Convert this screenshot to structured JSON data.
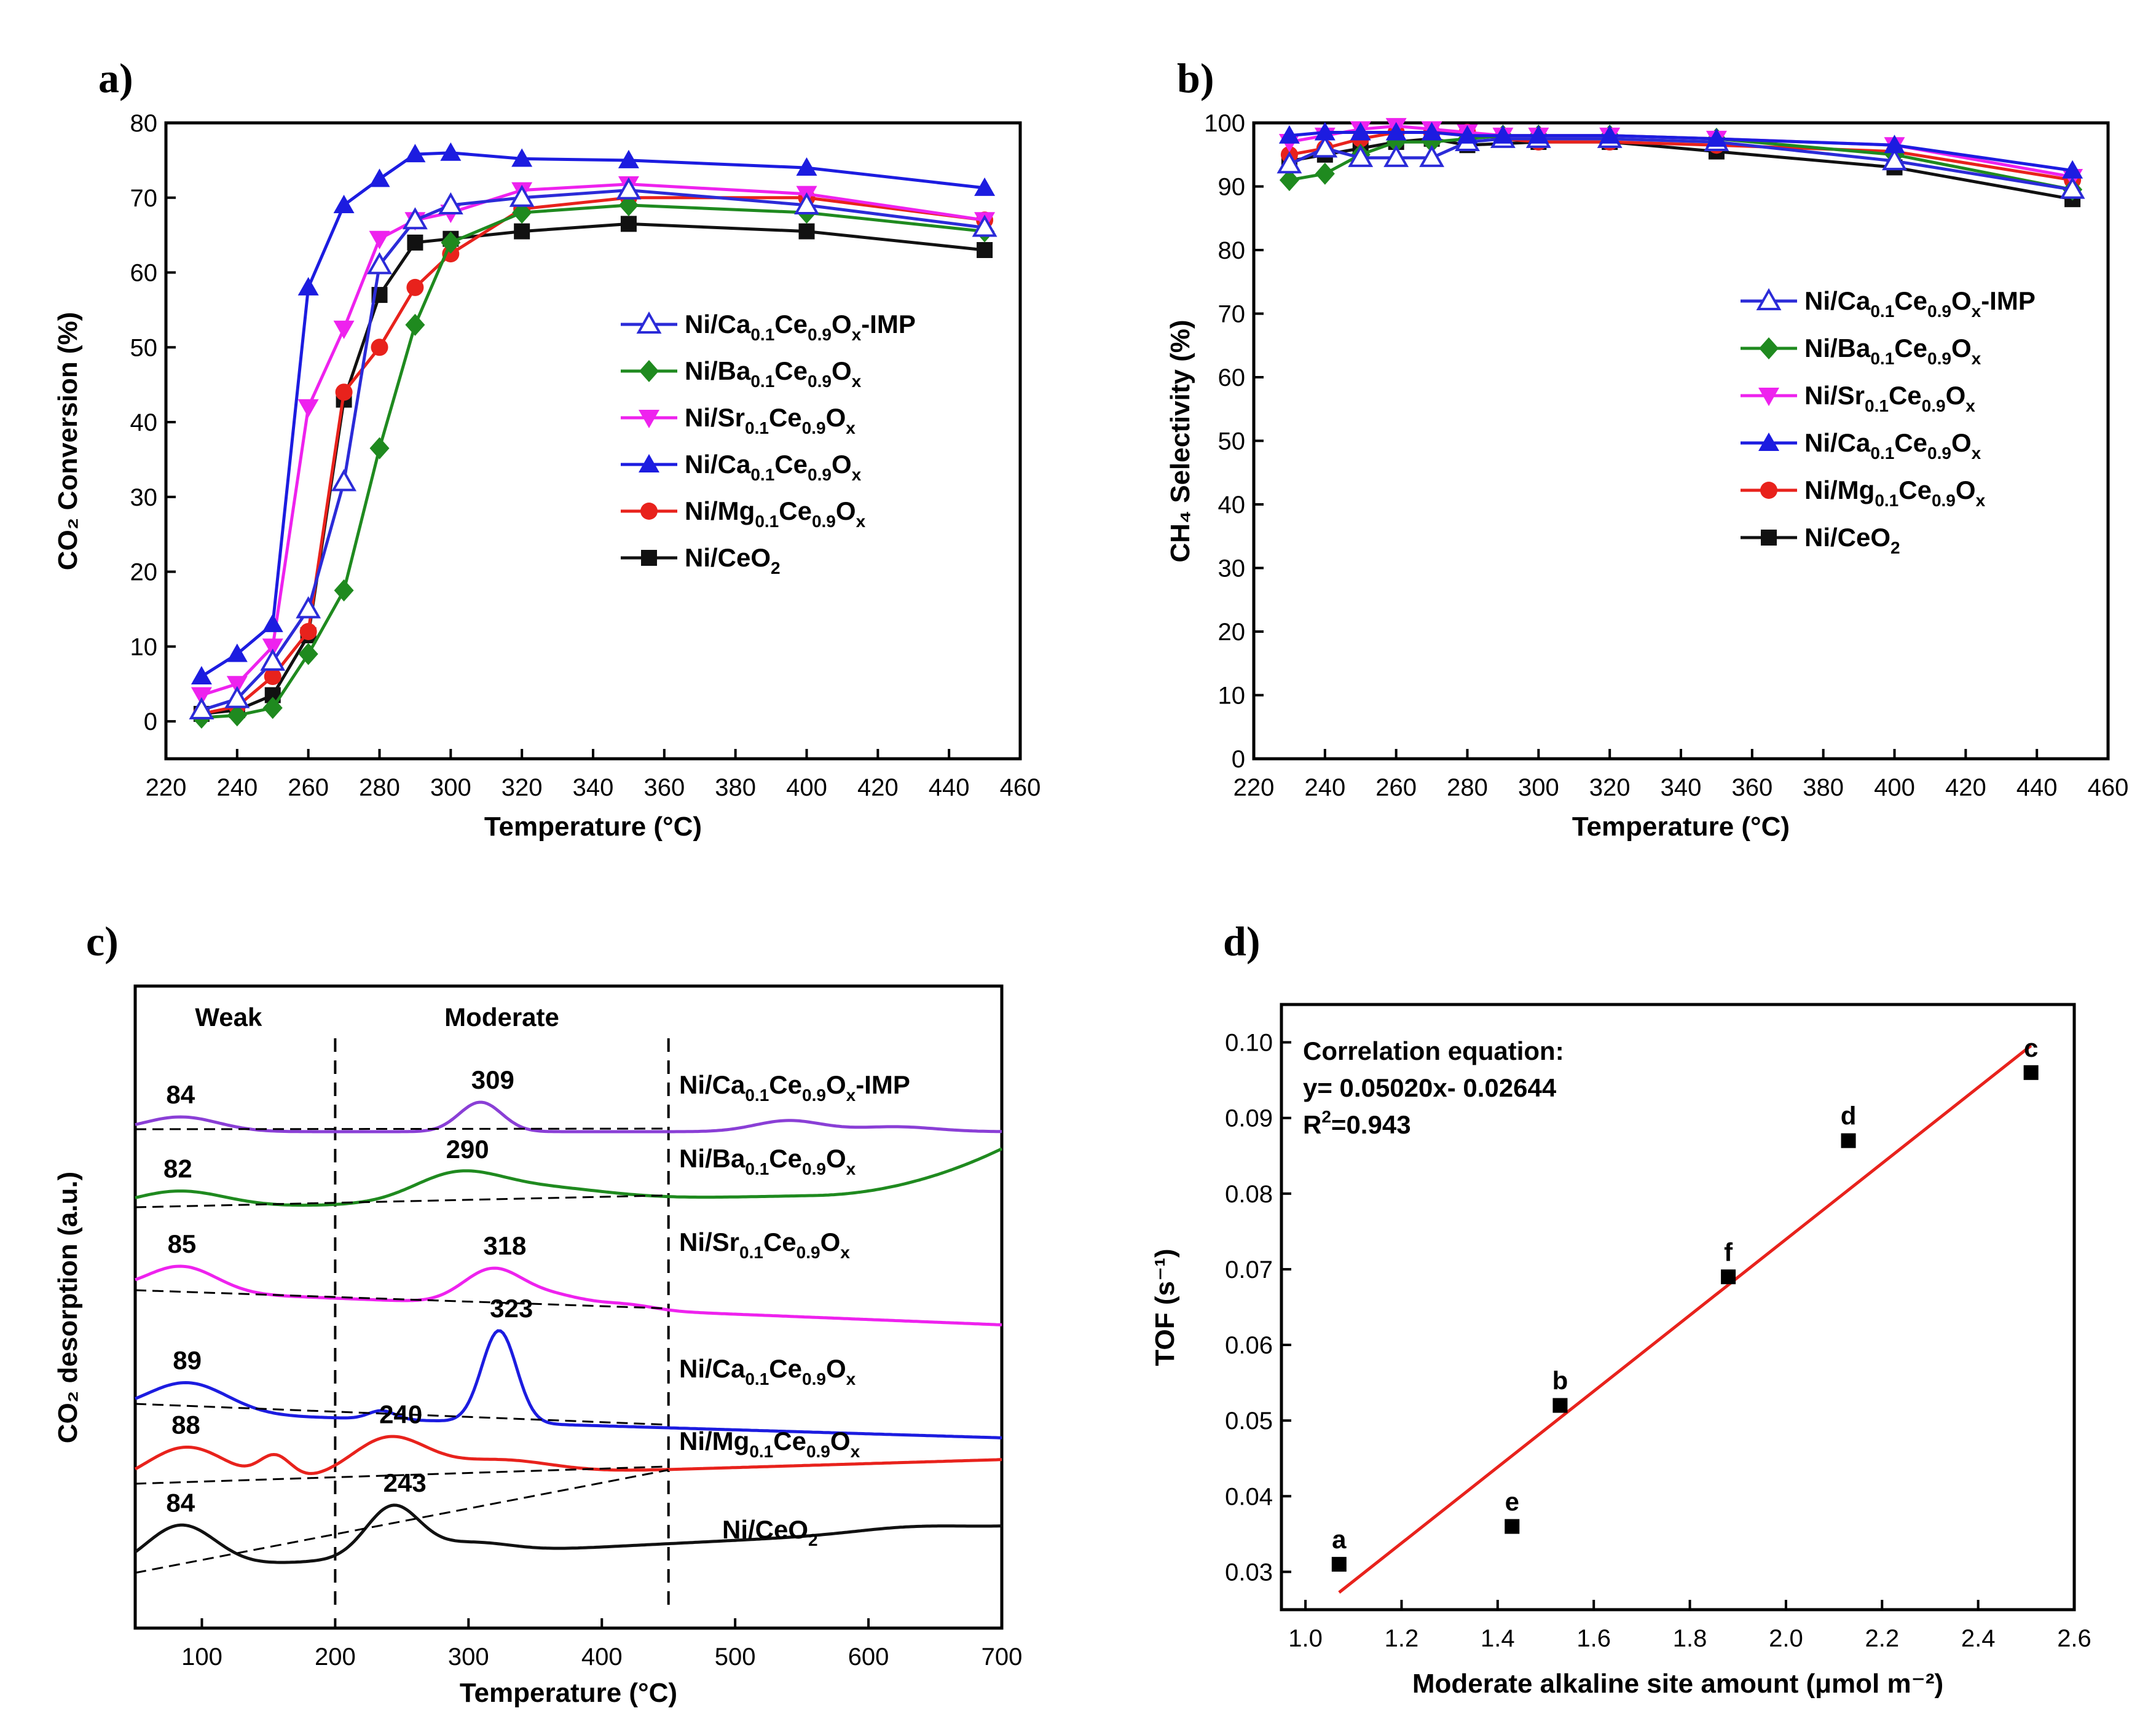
{
  "chart_data": [
    {
      "id": "a",
      "panel_label": "a)",
      "type": "line",
      "xlabel": "Temperature (°C)",
      "ylabel": "CO₂ Conversion (%)",
      "xlim": [
        220,
        460
      ],
      "ylim": [
        -5,
        80
      ],
      "xticks": [
        220,
        240,
        260,
        280,
        300,
        320,
        340,
        360,
        380,
        400,
        420,
        440,
        460
      ],
      "yticks": [
        0,
        10,
        20,
        30,
        40,
        50,
        60,
        70,
        80
      ],
      "legend_position": "center-right",
      "series": [
        {
          "name": "Ni/Ca0.1Ce0.9Ox-IMP",
          "base": "Ni/Ca",
          "s1": "0.1",
          "mid": "Ce",
          "s2": "0.9",
          "end": "O",
          "s3": "x",
          "tail": "-IMP",
          "color": "#2b2bd8",
          "marker": "triangle-open",
          "x": [
            230,
            240,
            250,
            260,
            270,
            280,
            290,
            300,
            320,
            350,
            400,
            450
          ],
          "y": [
            1.5,
            3,
            8,
            15,
            32,
            61,
            67,
            69,
            70,
            71,
            69,
            66
          ]
        },
        {
          "name": "Ni/Ba0.1Ce0.9Ox",
          "base": "Ni/Ba",
          "s1": "0.1",
          "mid": "Ce",
          "s2": "0.9",
          "end": "O",
          "s3": "x",
          "tail": "",
          "color": "#1f8a1f",
          "marker": "diamond",
          "x": [
            230,
            240,
            250,
            260,
            270,
            280,
            290,
            300,
            320,
            350,
            400,
            450
          ],
          "y": [
            0.5,
            0.8,
            1.8,
            9,
            17.5,
            36.5,
            53,
            64,
            68,
            69,
            68,
            65.5
          ]
        },
        {
          "name": "Ni/Sr0.1Ce0.9Ox",
          "base": "Ni/Sr",
          "s1": "0.1",
          "mid": "Ce",
          "s2": "0.9",
          "end": "O",
          "s3": "x",
          "tail": "",
          "color": "#ee22ee",
          "marker": "triangle-down",
          "x": [
            230,
            240,
            250,
            260,
            270,
            280,
            290,
            300,
            320,
            350,
            400,
            450
          ],
          "y": [
            3.5,
            5,
            10,
            42,
            52.5,
            64.5,
            67,
            68,
            71,
            71.8,
            70.5,
            67
          ]
        },
        {
          "name": "Ni/Ca0.1Ce0.9Ox",
          "base": "Ni/Ca",
          "s1": "0.1",
          "mid": "Ce",
          "s2": "0.9",
          "end": "O",
          "s3": "x",
          "tail": "",
          "color": "#1c1ce0",
          "marker": "triangle-up",
          "x": [
            230,
            240,
            250,
            260,
            270,
            280,
            290,
            300,
            320,
            350,
            400,
            450
          ],
          "y": [
            6,
            9,
            13,
            58,
            69,
            72.5,
            75.8,
            76,
            75.2,
            75,
            74,
            71.3
          ]
        },
        {
          "name": "Ni/Mg0.1Ce0.9Ox",
          "base": "Ni/Mg",
          "s1": "0.1",
          "mid": "Ce",
          "s2": "0.9",
          "end": "O",
          "s3": "x",
          "tail": "",
          "color": "#e8221c",
          "marker": "circle",
          "x": [
            230,
            240,
            250,
            260,
            270,
            280,
            290,
            300,
            320,
            350,
            400,
            450
          ],
          "y": [
            1,
            2,
            6,
            12,
            44,
            50,
            58,
            62.5,
            68.5,
            70,
            70,
            67
          ]
        },
        {
          "name": "Ni/CeO2",
          "base": "Ni/CeO",
          "s1": "",
          "mid": "",
          "s2": "",
          "end": "",
          "s3": "2",
          "tail": "",
          "color": "#111111",
          "marker": "square",
          "x": [
            230,
            240,
            250,
            260,
            270,
            280,
            290,
            300,
            320,
            350,
            400,
            450
          ],
          "y": [
            1,
            1.5,
            3.5,
            11.5,
            43,
            57,
            64,
            64.5,
            65.5,
            66.5,
            65.5,
            63
          ]
        }
      ]
    },
    {
      "id": "b",
      "panel_label": "b)",
      "type": "line",
      "xlabel": "Temperature (°C)",
      "ylabel": "CH₄ Selectivity (%)",
      "xlim": [
        220,
        460
      ],
      "ylim": [
        0,
        100
      ],
      "xticks": [
        220,
        240,
        260,
        280,
        300,
        320,
        340,
        360,
        380,
        400,
        420,
        440,
        460
      ],
      "yticks": [
        0,
        10,
        20,
        30,
        40,
        50,
        60,
        70,
        80,
        90,
        100
      ],
      "legend_position": "center-right",
      "series": [
        {
          "name": "Ni/Ca0.1Ce0.9Ox-IMP",
          "base": "Ni/Ca",
          "s1": "0.1",
          "mid": "Ce",
          "s2": "0.9",
          "end": "O",
          "s3": "x",
          "tail": "-IMP",
          "color": "#2b2bd8",
          "marker": "triangle-open",
          "x": [
            230,
            240,
            250,
            260,
            270,
            280,
            290,
            300,
            320,
            350,
            400,
            450
          ],
          "y": [
            93.5,
            96,
            94.5,
            94.5,
            94.5,
            97,
            97.5,
            97.5,
            97.5,
            97,
            94,
            89.5
          ]
        },
        {
          "name": "Ni/Ba0.1Ce0.9Ox",
          "base": "Ni/Ba",
          "s1": "0.1",
          "mid": "Ce",
          "s2": "0.9",
          "end": "O",
          "s3": "x",
          "tail": "",
          "color": "#1f8a1f",
          "marker": "diamond",
          "x": [
            230,
            240,
            250,
            260,
            270,
            280,
            290,
            300,
            320,
            350,
            400,
            450
          ],
          "y": [
            91,
            92,
            95,
            97,
            97,
            97.5,
            98,
            98,
            98,
            97.5,
            95,
            89.5
          ]
        },
        {
          "name": "Ni/Sr0.1Ce0.9Ox",
          "base": "Ni/Sr",
          "s1": "0.1",
          "mid": "Ce",
          "s2": "0.9",
          "end": "O",
          "s3": "x",
          "tail": "",
          "color": "#ee22ee",
          "marker": "triangle-down",
          "x": [
            230,
            240,
            250,
            260,
            270,
            280,
            290,
            300,
            320,
            350,
            400,
            450
          ],
          "y": [
            97,
            98,
            99,
            99.5,
            99,
            98.5,
            98,
            98,
            98,
            97.5,
            96.5,
            91.5
          ]
        },
        {
          "name": "Ni/Ca0.1Ce0.9Ox",
          "base": "Ni/Ca",
          "s1": "0.1",
          "mid": "Ce",
          "s2": "0.9",
          "end": "O",
          "s3": "x",
          "tail": "",
          "color": "#1c1ce0",
          "marker": "triangle-up",
          "x": [
            230,
            240,
            250,
            260,
            270,
            280,
            290,
            300,
            320,
            350,
            400,
            450
          ],
          "y": [
            98,
            98.5,
            98.5,
            98.5,
            98.5,
            98,
            98,
            98,
            98,
            97.5,
            96.5,
            92.5
          ]
        },
        {
          "name": "Ni/Mg0.1Ce0.9Ox",
          "base": "Ni/Mg",
          "s1": "0.1",
          "mid": "Ce",
          "s2": "0.9",
          "end": "O",
          "s3": "x",
          "tail": "",
          "color": "#e8221c",
          "marker": "circle",
          "x": [
            230,
            240,
            250,
            260,
            270,
            280,
            290,
            300,
            320,
            350,
            400,
            450
          ],
          "y": [
            95,
            96,
            97.5,
            98.5,
            98.5,
            98.5,
            97.5,
            97,
            97,
            96.5,
            95.5,
            91
          ]
        },
        {
          "name": "Ni/CeO2",
          "base": "Ni/CeO",
          "s1": "",
          "mid": "",
          "s2": "",
          "end": "",
          "s3": "2",
          "tail": "",
          "color": "#111111",
          "marker": "square",
          "x": [
            230,
            240,
            250,
            260,
            270,
            280,
            300,
            320,
            350,
            400,
            450
          ],
          "y": [
            94,
            95,
            96,
            97,
            97.5,
            96.5,
            97,
            97,
            95.5,
            93,
            88
          ]
        }
      ]
    },
    {
      "id": "c",
      "panel_label": "c)",
      "type": "line",
      "xlabel": "Temperature (°C)",
      "ylabel": "CO₂ desorption (a.u.)",
      "xlim": [
        50,
        700
      ],
      "xticks": [
        100,
        200,
        300,
        400,
        500,
        600,
        700
      ],
      "region_labels": [
        {
          "text": "Weak",
          "x": 120
        },
        {
          "text": "Moderate",
          "x": 325
        }
      ],
      "dividers": [
        200,
        450
      ],
      "series": [
        {
          "name": "Ni/Ca0.1Ce0.9Ox-IMP",
          "base": "Ni/Ca",
          "s1": "0.1",
          "mid": "Ce",
          "s2": "0.9",
          "end": "O",
          "s3": "x",
          "tail": "-IMP",
          "color": "#8a3fd6",
          "offset": 5,
          "peaks": [
            "84",
            "309"
          ],
          "peak_x": [
            84,
            309
          ]
        },
        {
          "name": "Ni/Ba0.1Ce0.9Ox",
          "base": "Ni/Ba",
          "s1": "0.1",
          "mid": "Ce",
          "s2": "0.9",
          "end": "O",
          "s3": "x",
          "tail": "",
          "color": "#1f8a1f",
          "offset": 4,
          "peaks": [
            "82",
            "290"
          ],
          "peak_x": [
            82,
            290
          ]
        },
        {
          "name": "Ni/Sr0.1Ce0.9Ox",
          "base": "Ni/Sr",
          "s1": "0.1",
          "mid": "Ce",
          "s2": "0.9",
          "end": "O",
          "s3": "x",
          "tail": "",
          "color": "#ee22ee",
          "offset": 3,
          "peaks": [
            "85",
            "318"
          ],
          "peak_x": [
            85,
            318
          ]
        },
        {
          "name": "Ni/Ca0.1Ce0.9Ox",
          "base": "Ni/Ca",
          "s1": "0.1",
          "mid": "Ce",
          "s2": "0.9",
          "end": "O",
          "s3": "x",
          "tail": "",
          "color": "#1c1ce0",
          "offset": 2,
          "peaks": [
            "89",
            "323"
          ],
          "peak_x": [
            89,
            323
          ]
        },
        {
          "name": "Ni/Mg0.1Ce0.9Ox",
          "base": "Ni/Mg",
          "s1": "0.1",
          "mid": "Ce",
          "s2": "0.9",
          "end": "O",
          "s3": "x",
          "tail": "",
          "color": "#e8221c",
          "offset": 1,
          "peaks": [
            "88",
            "240"
          ],
          "peak_x": [
            88,
            240
          ]
        },
        {
          "name": "Ni/CeO2",
          "base": "Ni/CeO",
          "s1": "",
          "mid": "",
          "s2": "",
          "end": "",
          "s3": "2",
          "tail": "",
          "color": "#111111",
          "offset": 0,
          "peaks": [
            "84",
            "243"
          ],
          "peak_x": [
            84,
            243
          ]
        }
      ]
    },
    {
      "id": "d",
      "panel_label": "d)",
      "type": "scatter",
      "xlabel": "Moderate alkaline site amount (μmol m⁻²)",
      "ylabel": "TOF (s⁻¹)",
      "xlim": [
        0.95,
        2.6
      ],
      "ylim": [
        0.025,
        0.105
      ],
      "xticks": [
        1.0,
        1.2,
        1.4,
        1.6,
        1.8,
        2.0,
        2.2,
        2.4,
        2.6
      ],
      "yticks": [
        0.03,
        0.04,
        0.05,
        0.06,
        0.07,
        0.08,
        0.09,
        0.1
      ],
      "points": [
        {
          "label": "a",
          "x": 1.07,
          "y": 0.031
        },
        {
          "label": "b",
          "x": 1.53,
          "y": 0.052
        },
        {
          "label": "c",
          "x": 2.51,
          "y": 0.096
        },
        {
          "label": "d",
          "x": 2.13,
          "y": 0.087
        },
        {
          "label": "e",
          "x": 1.43,
          "y": 0.036
        },
        {
          "label": "f",
          "x": 1.88,
          "y": 0.069
        }
      ],
      "fit": {
        "slope": 0.0502,
        "intercept": -0.02644,
        "x_range": [
          1.07,
          2.51
        ],
        "color": "#e8221c"
      },
      "annotation": {
        "line1": "Correlation equation:",
        "line2": "y= 0.05020x- 0.02644",
        "line3_pre": "R",
        "line3_sup": "2",
        "line3_post": "=0.943"
      }
    }
  ]
}
